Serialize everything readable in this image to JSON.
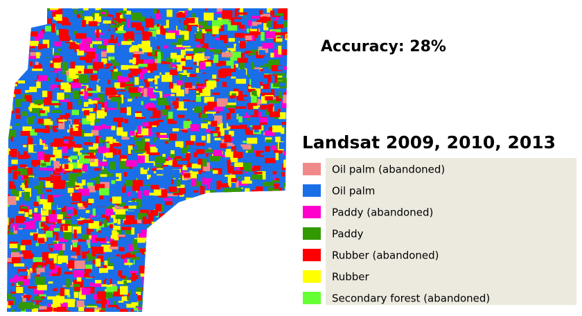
{
  "title": "Accuracy: 28%",
  "legend": {
    "title": "Landsat 2009, 2010, 2013",
    "items": [
      {
        "label": "Oil palm (abandoned)",
        "color": "#f08a8a"
      },
      {
        "label": "Oil palm",
        "color": "#1a6fe8"
      },
      {
        "label": "Paddy (abandoned)",
        "color": "#ff00cc"
      },
      {
        "label": "Paddy",
        "color": "#339900"
      },
      {
        "label": "Rubber (abandoned)",
        "color": "#ff0000"
      },
      {
        "label": "Rubber",
        "color": "#ffff00"
      },
      {
        "label": "Secondary forest (abandoned)",
        "color": "#66ff33"
      }
    ]
  }
}
